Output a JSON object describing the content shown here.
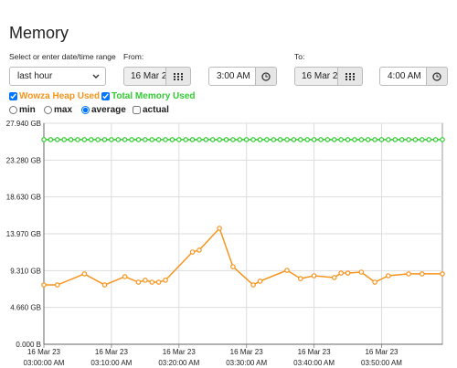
{
  "header": {
    "title": "Memory"
  },
  "controls": {
    "range_label": "Select or enter date/time range",
    "range_select": "last hour",
    "from_label": "From:",
    "from_date": "16 Mar 2",
    "from_time": "3:00 AM",
    "to_label": "To:",
    "to_date": "16 Mar 2",
    "to_time": "4:00 AM",
    "radios": [
      "min",
      "max",
      "average",
      "actual"
    ],
    "radio_selected": 2
  },
  "chart_data": {
    "type": "line",
    "series": [
      {
        "name": "Wowza Heap Used",
        "color": "#f7941d",
        "x": [
          0,
          2,
          6,
          9,
          12,
          14,
          15,
          16,
          17,
          18,
          22,
          23,
          26,
          28,
          31,
          32,
          36,
          38,
          40,
          43,
          44,
          45,
          47,
          49,
          51,
          54,
          56,
          59
        ],
        "values": [
          7.5,
          7.5,
          8.9,
          7.5,
          8.55,
          7.85,
          8.1,
          7.85,
          7.85,
          8.1,
          11.66,
          11.9,
          14.66,
          9.8,
          7.5,
          7.97,
          9.35,
          8.3,
          8.66,
          8.43,
          9.0,
          9.0,
          9.12,
          7.85,
          8.66,
          8.9,
          8.9,
          8.9
        ]
      },
      {
        "name": "Total Memory Used",
        "color": "#33cc33",
        "x": [
          0,
          1,
          2,
          3,
          4,
          5,
          6,
          7,
          8,
          9,
          10,
          11,
          12,
          13,
          14,
          15,
          16,
          17,
          18,
          19,
          20,
          21,
          22,
          23,
          24,
          25,
          26,
          27,
          28,
          29,
          30,
          31,
          32,
          33,
          34,
          35,
          36,
          37,
          38,
          39,
          40,
          41,
          42,
          43,
          44,
          45,
          46,
          47,
          48,
          49,
          50,
          51,
          52,
          53,
          54,
          55,
          56,
          57,
          58,
          59
        ],
        "values": [
          25.87,
          25.87,
          25.87,
          25.87,
          25.87,
          25.87,
          25.87,
          25.87,
          25.87,
          25.87,
          25.87,
          25.87,
          25.87,
          25.87,
          25.87,
          25.87,
          25.87,
          25.87,
          25.87,
          25.87,
          25.87,
          25.87,
          25.87,
          25.87,
          25.87,
          25.87,
          25.87,
          25.87,
          25.87,
          25.87,
          25.87,
          25.87,
          25.87,
          25.87,
          25.87,
          25.87,
          25.87,
          25.87,
          25.87,
          25.87,
          25.87,
          25.87,
          25.87,
          25.87,
          25.87,
          25.87,
          25.87,
          25.87,
          25.87,
          25.87,
          25.87,
          25.87,
          25.87,
          25.87,
          25.87,
          25.87,
          25.87,
          25.87,
          25.87,
          25.87
        ]
      }
    ],
    "xlim": [
      0,
      59
    ],
    "xticks": [
      {
        "value": 0,
        "date": "16 Mar 23",
        "label": "03:00:00 AM"
      },
      {
        "value": 10,
        "date": "16 Mar 23",
        "label": "03:10:00 AM"
      },
      {
        "value": 20,
        "date": "16 Mar 23",
        "label": "03:20:00 AM"
      },
      {
        "value": 30,
        "date": "16 Mar 23",
        "label": "03:30:00 AM"
      },
      {
        "value": 40,
        "date": "16 Mar 23",
        "label": "03:40:00 AM"
      },
      {
        "value": 50,
        "date": "16 Mar 23",
        "label": "03:50:00 AM"
      }
    ],
    "ylim": [
      0,
      27.94
    ],
    "yticks": [
      {
        "value": 0,
        "label": "0.000 B"
      },
      {
        "value": 4.66,
        "label": "4.660 GB"
      },
      {
        "value": 9.31,
        "label": "9.310 GB"
      },
      {
        "value": 13.97,
        "label": "13.970 GB"
      },
      {
        "value": 18.63,
        "label": "18.630 GB"
      },
      {
        "value": 23.28,
        "label": "23.280 GB"
      },
      {
        "value": 27.94,
        "label": "27.940 GB"
      }
    ],
    "grid": true
  }
}
